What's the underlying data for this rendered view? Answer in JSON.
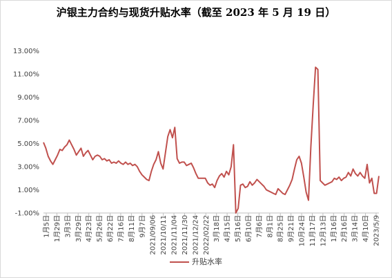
{
  "chart_data": {
    "type": "line",
    "title": "沪银主力合约与现货升贴水率（截至 2023 年 5 月 19 日）",
    "xlabel": "",
    "ylabel": "",
    "ylim": [
      -1.0,
      14.0
    ],
    "yticks": [
      -1,
      1,
      3,
      5,
      7,
      9,
      11,
      13
    ],
    "ytick_labels": [
      "-1.00%",
      "1.00%",
      "3.00%",
      "5.00%",
      "7.00%",
      "9.00%",
      "11.00%",
      "13.00%"
    ],
    "legend_position": "bottom",
    "grid": false,
    "x_tick_labels": [
      "1月5日",
      "1月29日",
      "3月3日",
      "3月29日",
      "4月23日",
      "5月26日",
      "6月22日",
      "7月16日",
      "8月11日",
      "9月7日",
      "2021/09/06",
      "2021/10/11",
      "2021/11/04",
      "2021/11/30",
      "2021/12/24",
      "2022/02/22",
      "3月18日",
      "4月15日",
      "5月16日",
      "6月10日",
      "7月6日",
      "8月1日",
      "8月25日",
      "9月21日",
      "10月24日",
      "11月17日",
      "12月13日",
      "1月16日",
      "2月16日",
      "3月14日",
      "4月10日",
      "2023/5/9"
    ],
    "series": [
      {
        "name": "升贴水率",
        "color": "#c0504d",
        "values": [
          5.1,
          4.6,
          3.9,
          3.5,
          3.2,
          3.6,
          4.0,
          4.5,
          4.4,
          4.7,
          4.9,
          5.3,
          4.9,
          4.5,
          4.0,
          4.3,
          4.6,
          3.9,
          4.2,
          4.4,
          4.0,
          3.6,
          3.9,
          4.0,
          3.9,
          3.6,
          3.7,
          3.5,
          3.6,
          3.3,
          3.4,
          3.3,
          3.5,
          3.3,
          3.2,
          3.4,
          3.2,
          3.3,
          3.1,
          3.2,
          3.0,
          2.6,
          2.3,
          2.1,
          1.9,
          1.8,
          2.6,
          3.2,
          3.6,
          4.3,
          3.3,
          2.8,
          4.2,
          5.6,
          6.2,
          5.5,
          6.4,
          3.7,
          3.3,
          3.4,
          3.4,
          3.1,
          3.2,
          3.3,
          2.9,
          2.4,
          2.0,
          2.0,
          2.0,
          2.0,
          1.6,
          1.4,
          1.5,
          1.2,
          1.8,
          2.2,
          2.4,
          2.1,
          2.6,
          2.3,
          3.0,
          4.9,
          -1.0,
          -0.6,
          1.4,
          1.5,
          1.2,
          1.3,
          1.7,
          1.4,
          1.6,
          1.9,
          1.7,
          1.5,
          1.3,
          1.0,
          0.9,
          0.8,
          0.7,
          0.6,
          1.1,
          0.9,
          0.7,
          0.6,
          1.0,
          1.4,
          1.9,
          2.8,
          3.6,
          3.9,
          3.3,
          2.1,
          0.8,
          0.1,
          4.7,
          8.3,
          11.6,
          11.4,
          1.8,
          1.6,
          1.4,
          1.5,
          1.6,
          1.7,
          2.0,
          1.9,
          2.1,
          1.8,
          2.0,
          2.1,
          2.5,
          2.2,
          2.8,
          2.4,
          2.2,
          2.5,
          2.2,
          2.0,
          3.2,
          1.6,
          2.0,
          0.7,
          0.7,
          2.2
        ]
      }
    ]
  }
}
